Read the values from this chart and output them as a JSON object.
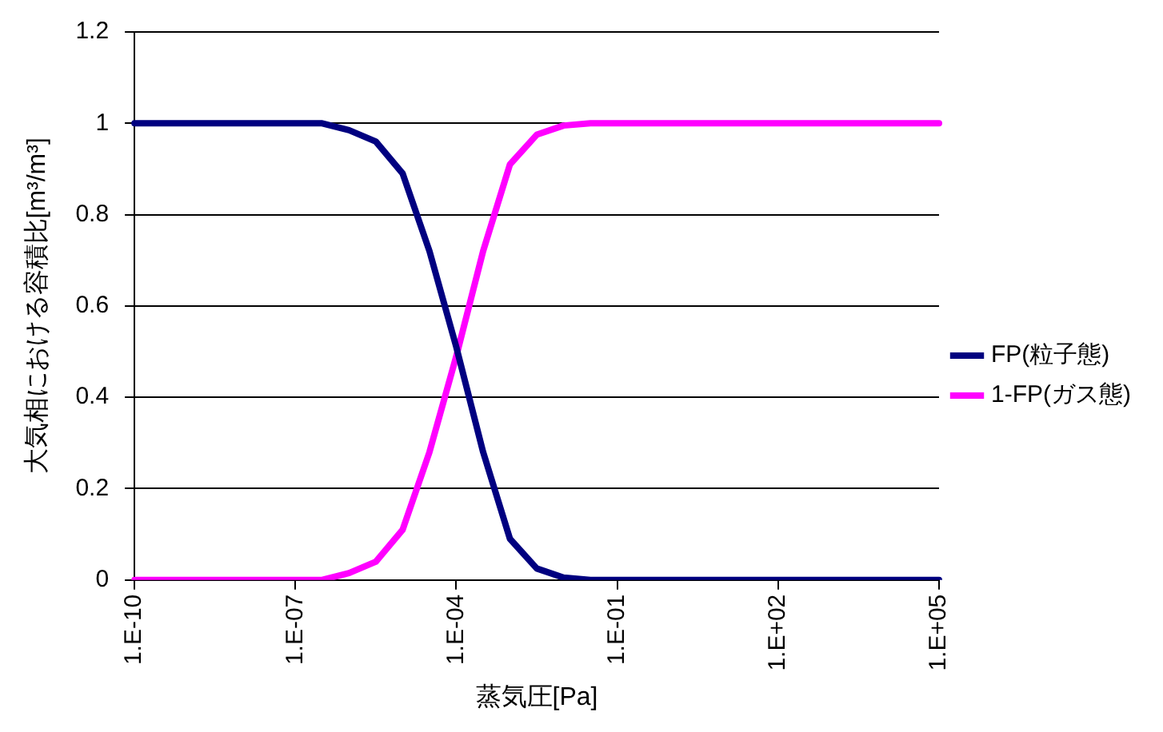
{
  "chart_data": {
    "type": "line",
    "xlabel": "蒸気圧[Pa]",
    "ylabel": "大気相における容積比[m³/m³]",
    "categories": [
      "1.E-10",
      null,
      null,
      null,
      null,
      null,
      "1.E-07",
      null,
      null,
      null,
      null,
      null,
      "1.E-04",
      null,
      null,
      null,
      null,
      null,
      "1.E-01",
      null,
      null,
      null,
      null,
      null,
      "1.E+02",
      null,
      null,
      null,
      null,
      null,
      "1.E+05"
    ],
    "series": [
      {
        "name": "FP(粒子態)",
        "color": "#000080",
        "values": [
          1,
          1,
          1,
          1,
          1,
          1,
          1,
          1,
          0.985,
          0.96,
          0.89,
          0.72,
          0.51,
          0.28,
          0.09,
          0.025,
          0.005,
          0,
          0,
          0,
          0,
          0,
          0,
          0,
          0,
          0,
          0,
          0,
          0,
          0,
          0
        ]
      },
      {
        "name": "1-FP(ガス態)",
        "color": "#ff00ff",
        "values": [
          0,
          0,
          0,
          0,
          0,
          0,
          0,
          0,
          0.015,
          0.04,
          0.11,
          0.28,
          0.49,
          0.72,
          0.91,
          0.975,
          0.995,
          1,
          1,
          1,
          1,
          1,
          1,
          1,
          1,
          1,
          1,
          1,
          1,
          1,
          1
        ]
      }
    ],
    "ylim": [
      0,
      1.2
    ],
    "yticks": [
      0,
      0.2,
      0.4,
      0.6,
      0.8,
      1,
      1.2
    ],
    "grid": "y",
    "legend": "right",
    "marker": "none",
    "line_style": "solid"
  }
}
